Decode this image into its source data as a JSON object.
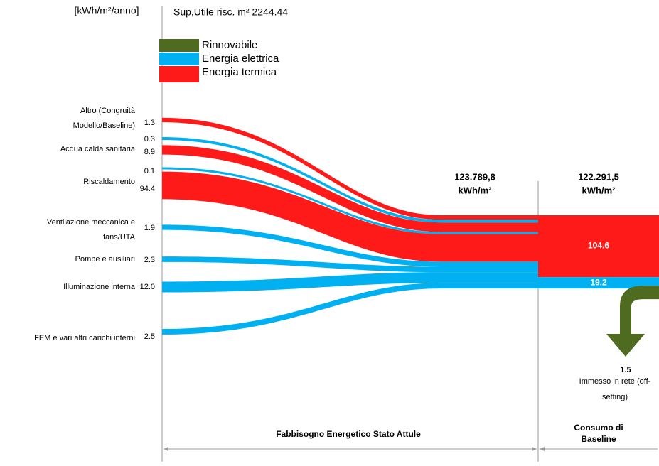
{
  "chart_data": {
    "type": "sankey",
    "unit": "[kWh/m²/anno]",
    "subtitle": "Sup,Utile risc. m² 2244.44",
    "legend": [
      {
        "name": "Rinnovabile",
        "color": "#4e6b1f"
      },
      {
        "name": "Energia elettrica",
        "color": "#00b0f0"
      },
      {
        "name": "Energia termica",
        "color": "#ff1a1a"
      }
    ],
    "flows": [
      {
        "name": [
          "Altro (Congruità",
          "Modello/Baseline)"
        ],
        "value": 1.3,
        "value_label": "1.3",
        "color": "#ff1a1a"
      },
      {
        "name": null,
        "value": 0.3,
        "value_label": "0.3",
        "color": "#00b0f0"
      },
      {
        "name": [
          "Acqua calda sanitaria"
        ],
        "value": 8.9,
        "value_label": "8.9",
        "color": "#ff1a1a"
      },
      {
        "name": null,
        "value": 0.1,
        "value_label": "0.1",
        "color": "#00b0f0"
      },
      {
        "name": [
          "Riscaldamento"
        ],
        "value": 94.4,
        "value_label": "94.4",
        "color": "#ff1a1a"
      },
      {
        "name": [
          "Ventilazione meccanica e",
          "fans/UTA"
        ],
        "value": 1.9,
        "value_label": "1.9",
        "color": "#00b0f0"
      },
      {
        "name": [
          "Pompe e ausiliari"
        ],
        "value": 2.3,
        "value_label": "2.3",
        "color": "#00b0f0"
      },
      {
        "name": [
          "Illuminazione interna"
        ],
        "value": 12.0,
        "value_label": "12.0",
        "color": "#00b0f0"
      },
      {
        "name": [
          "FEM e vari altri carichi interni"
        ],
        "value": 2.5,
        "value_label": "2.5",
        "color": "#00b0f0"
      }
    ],
    "total_need": [
      "123.789,8",
      "kWh/m²"
    ],
    "total_baseline": [
      "122.291,5",
      "kWh/m²"
    ],
    "outputs": [
      {
        "value": 104.6,
        "color": "#ff1a1a"
      },
      {
        "value": 19.2,
        "color": "#00b0f0"
      }
    ],
    "export": {
      "value": 1.5,
      "label": [
        "Immesso in rete (off-",
        "setting)"
      ],
      "color": "#4e6b1f"
    },
    "section_need": "Fabbisogno Energetico Stato Attule",
    "section_baseline": [
      "Consumo di",
      "Baseline"
    ]
  }
}
